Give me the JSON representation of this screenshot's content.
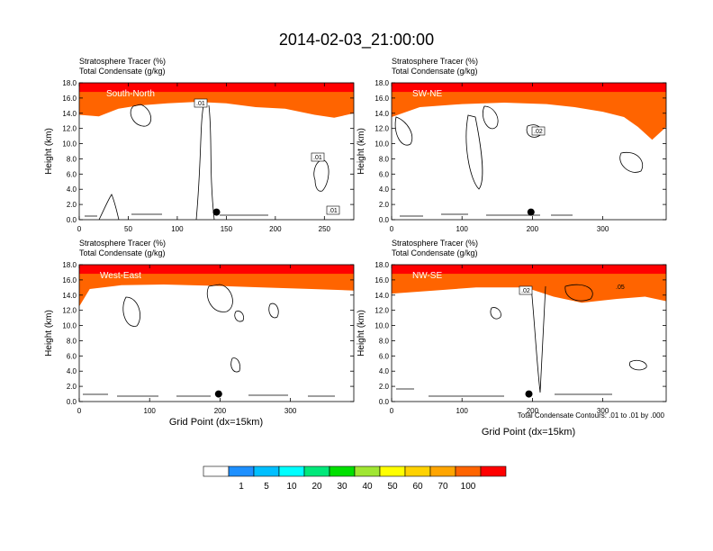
{
  "title": "2014-02-03_21:00:00",
  "footnote": "Total Condensate Contours: .01 to .01 by .000",
  "colorbar": {
    "colors": [
      "#ffffff",
      "#1e90ff",
      "#00bfff",
      "#00ffff",
      "#00e87a",
      "#00e000",
      "#a0e632",
      "#ffff00",
      "#ffd200",
      "#ffa500",
      "#ff6400",
      "#ff0000"
    ],
    "labels": [
      "1",
      "5",
      "10",
      "20",
      "30",
      "40",
      "50",
      "60",
      "70",
      "100"
    ]
  },
  "chart_data": [
    {
      "type": "heatmap",
      "panel": "South-North",
      "title_lines": [
        "Stratosphere Tracer   (%)",
        "Total Condensate   (g/kg)"
      ],
      "ylabel": "Height (km)",
      "xlabel": "",
      "xlim": [
        0,
        280
      ],
      "ylim": [
        0,
        18
      ],
      "xticks": [
        "0",
        "50",
        "100",
        "150",
        "200",
        "250"
      ],
      "yticks": [
        "0.0",
        "2.0",
        "4.0",
        "6.0",
        "8.0",
        "10.0",
        "12.0",
        "14.0",
        "16.0",
        "18.0"
      ],
      "tracer_base_km": [
        [
          0,
          13.8
        ],
        [
          20,
          13.6
        ],
        [
          40,
          14.6
        ],
        [
          60,
          15.0
        ],
        [
          90,
          15.3
        ],
        [
          120,
          15.5
        ],
        [
          150,
          15.3
        ],
        [
          180,
          14.8
        ],
        [
          210,
          14.6
        ],
        [
          240,
          13.8
        ],
        [
          260,
          13.4
        ],
        [
          280,
          14.0
        ]
      ],
      "contour_labels": [
        ".01",
        ".01",
        ".01"
      ],
      "marker": {
        "x": 140,
        "y": 1.0
      }
    },
    {
      "type": "heatmap",
      "panel": "SW-NE",
      "title_lines": [
        "Stratosphere Tracer   (%)",
        "Total Condensate   (g/kg)"
      ],
      "ylabel": "Height (km)",
      "xlabel": "",
      "xlim": [
        0,
        390
      ],
      "ylim": [
        0,
        18
      ],
      "xticks": [
        "0",
        "100",
        "200",
        "300"
      ],
      "yticks": [
        "0.0",
        "2.0",
        "4.0",
        "6.0",
        "8.0",
        "10.0",
        "12.0",
        "14.0",
        "16.0",
        "18.0"
      ],
      "tracer_base_km": [
        [
          0,
          13.5
        ],
        [
          40,
          14.8
        ],
        [
          100,
          15.2
        ],
        [
          160,
          15.4
        ],
        [
          220,
          15.2
        ],
        [
          260,
          14.8
        ],
        [
          300,
          14.2
        ],
        [
          330,
          13.5
        ],
        [
          350,
          12.2
        ],
        [
          370,
          10.5
        ],
        [
          390,
          12.2
        ]
      ],
      "contour_labels": [
        ".02"
      ],
      "marker": {
        "x": 198,
        "y": 1.0
      }
    },
    {
      "type": "heatmap",
      "panel": "West-East",
      "title_lines": [
        "Stratosphere Tracer   (%)",
        "Total Condensate   (g/kg)"
      ],
      "ylabel": "Height (km)",
      "xlabel": "Grid Point (dx=15km)",
      "xlim": [
        0,
        390
      ],
      "ylim": [
        0,
        18
      ],
      "xticks": [
        "0",
        "100",
        "200",
        "300"
      ],
      "yticks": [
        "0.0",
        "2.0",
        "4.0",
        "6.0",
        "8.0",
        "10.0",
        "12.0",
        "14.0",
        "16.0",
        "18.0"
      ],
      "tracer_base_km": [
        [
          0,
          12.5
        ],
        [
          15,
          14.8
        ],
        [
          60,
          15.3
        ],
        [
          120,
          15.4
        ],
        [
          200,
          15.2
        ],
        [
          260,
          15.0
        ],
        [
          330,
          14.8
        ],
        [
          390,
          14.6
        ]
      ],
      "contour_labels": [],
      "marker": {
        "x": 198,
        "y": 1.0
      }
    },
    {
      "type": "heatmap",
      "panel": "NW-SE",
      "title_lines": [
        "Stratosphere Tracer   (%)",
        "Total Condensate   (g/kg)"
      ],
      "ylabel": "Height (km)",
      "xlabel": "Grid Point (dx=15km)",
      "xlim": [
        0,
        390
      ],
      "ylim": [
        0,
        18
      ],
      "xticks": [
        "0",
        "100",
        "200",
        "300"
      ],
      "yticks": [
        "0.0",
        "2.0",
        "4.0",
        "6.0",
        "8.0",
        "10.0",
        "12.0",
        "14.0",
        "16.0",
        "18.0"
      ],
      "tracer_base_km": [
        [
          0,
          14.2
        ],
        [
          60,
          14.6
        ],
        [
          120,
          15.0
        ],
        [
          190,
          15.0
        ],
        [
          230,
          13.8
        ],
        [
          270,
          13.0
        ],
        [
          320,
          13.5
        ],
        [
          360,
          13.8
        ],
        [
          390,
          13.2
        ]
      ],
      "contour_labels": [
        ".02",
        ".05"
      ],
      "marker": {
        "x": 195,
        "y": 1.0
      }
    }
  ]
}
